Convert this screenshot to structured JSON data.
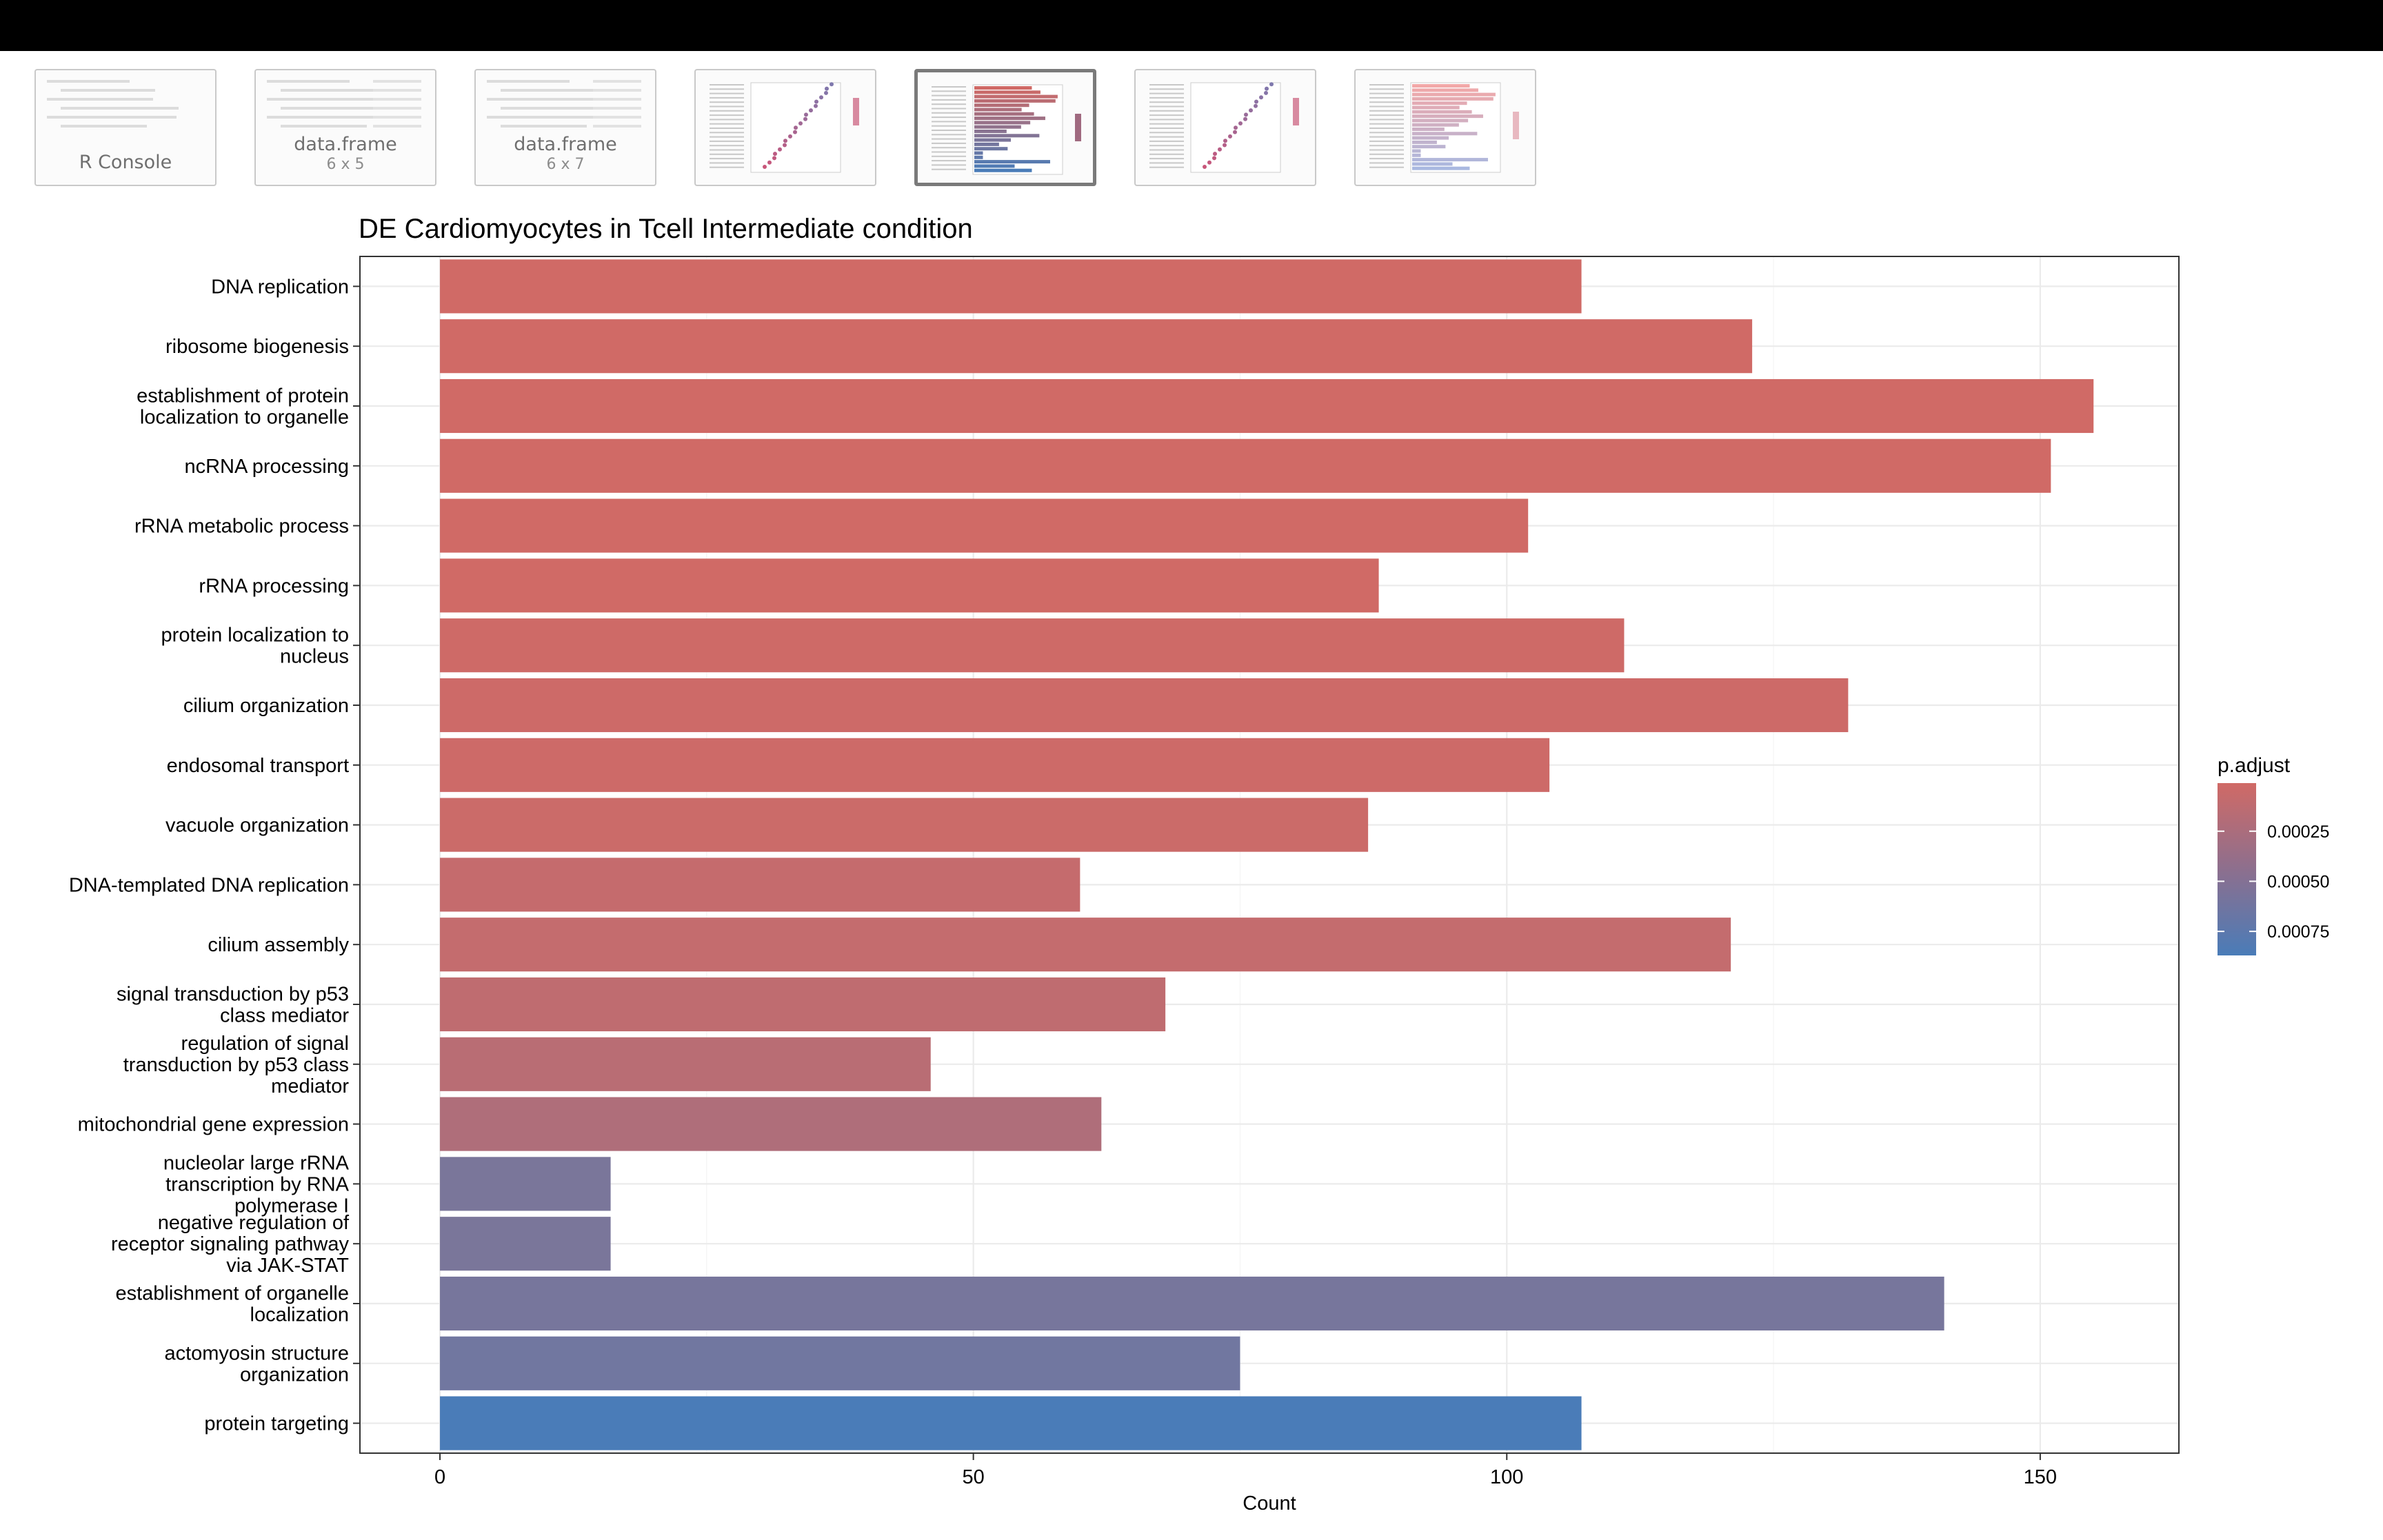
{
  "thumbnails": [
    {
      "title": "R Console",
      "subtitle": "",
      "kind": "console"
    },
    {
      "title": "data.frame",
      "subtitle": "6 x 5",
      "kind": "table"
    },
    {
      "title": "data.frame",
      "subtitle": "6 x 7",
      "kind": "table"
    },
    {
      "title": "",
      "subtitle": "",
      "kind": "dotplot"
    },
    {
      "title": "",
      "subtitle": "",
      "kind": "barplot",
      "active": true
    },
    {
      "title": "",
      "subtitle": "",
      "kind": "dotplot"
    },
    {
      "title": "",
      "subtitle": "",
      "kind": "barplot-light"
    }
  ],
  "chart_data": {
    "type": "bar",
    "orientation": "horizontal",
    "title": "DE Cardiomyocytes in Tcell Intermediate condition",
    "xlabel": "Count",
    "ylabel": "",
    "xlim": [
      -7.5,
      163
    ],
    "xticks": [
      0,
      50,
      100,
      150
    ],
    "grid": true,
    "legend": {
      "title": "p.adjust",
      "placement": "right",
      "ticks": [
        {
          "value": 0.00025,
          "label": "0.00025"
        },
        {
          "value": 0.0005,
          "label": "0.00050"
        },
        {
          "value": 0.00075,
          "label": "0.00075"
        }
      ],
      "range": [
        1e-05,
        0.00087
      ],
      "low_color": "#d06a66",
      "high_color": "#4a7cb8"
    },
    "categories": [
      [
        "DNA replication"
      ],
      [
        "ribosome biogenesis"
      ],
      [
        "establishment of protein",
        "localization to organelle"
      ],
      [
        "ncRNA processing"
      ],
      [
        "rRNA metabolic process"
      ],
      [
        "rRNA processing"
      ],
      [
        "protein localization to",
        "nucleus"
      ],
      [
        "cilium organization"
      ],
      [
        "endosomal transport"
      ],
      [
        "vacuole organization"
      ],
      [
        "DNA-templated DNA replication"
      ],
      [
        "cilium assembly"
      ],
      [
        "signal transduction by p53",
        "class mediator"
      ],
      [
        "regulation of signal",
        "transduction by p53 class",
        "mediator"
      ],
      [
        "mitochondrial gene expression"
      ],
      [
        "nucleolar large rRNA",
        "transcription by RNA",
        "polymerase I"
      ],
      [
        "negative regulation of",
        "receptor signaling pathway",
        "via JAK-STAT"
      ],
      [
        "establishment of organelle",
        "localization"
      ],
      [
        "actomyosin structure",
        "organization"
      ],
      [
        "protein targeting"
      ]
    ],
    "values": [
      107,
      123,
      155,
      151,
      102,
      88,
      111,
      132,
      104,
      87,
      60,
      121,
      68,
      46,
      62,
      16,
      16,
      141,
      75,
      107
    ],
    "p_adjust": [
      1e-05,
      1e-05,
      1e-05,
      1e-05,
      1e-05,
      1e-05,
      2e-05,
      3e-05,
      3e-05,
      4e-05,
      8e-05,
      9e-05,
      0.00012,
      0.00016,
      0.00022,
      0.00056,
      0.00056,
      0.00058,
      0.00062,
      0.00087
    ]
  }
}
